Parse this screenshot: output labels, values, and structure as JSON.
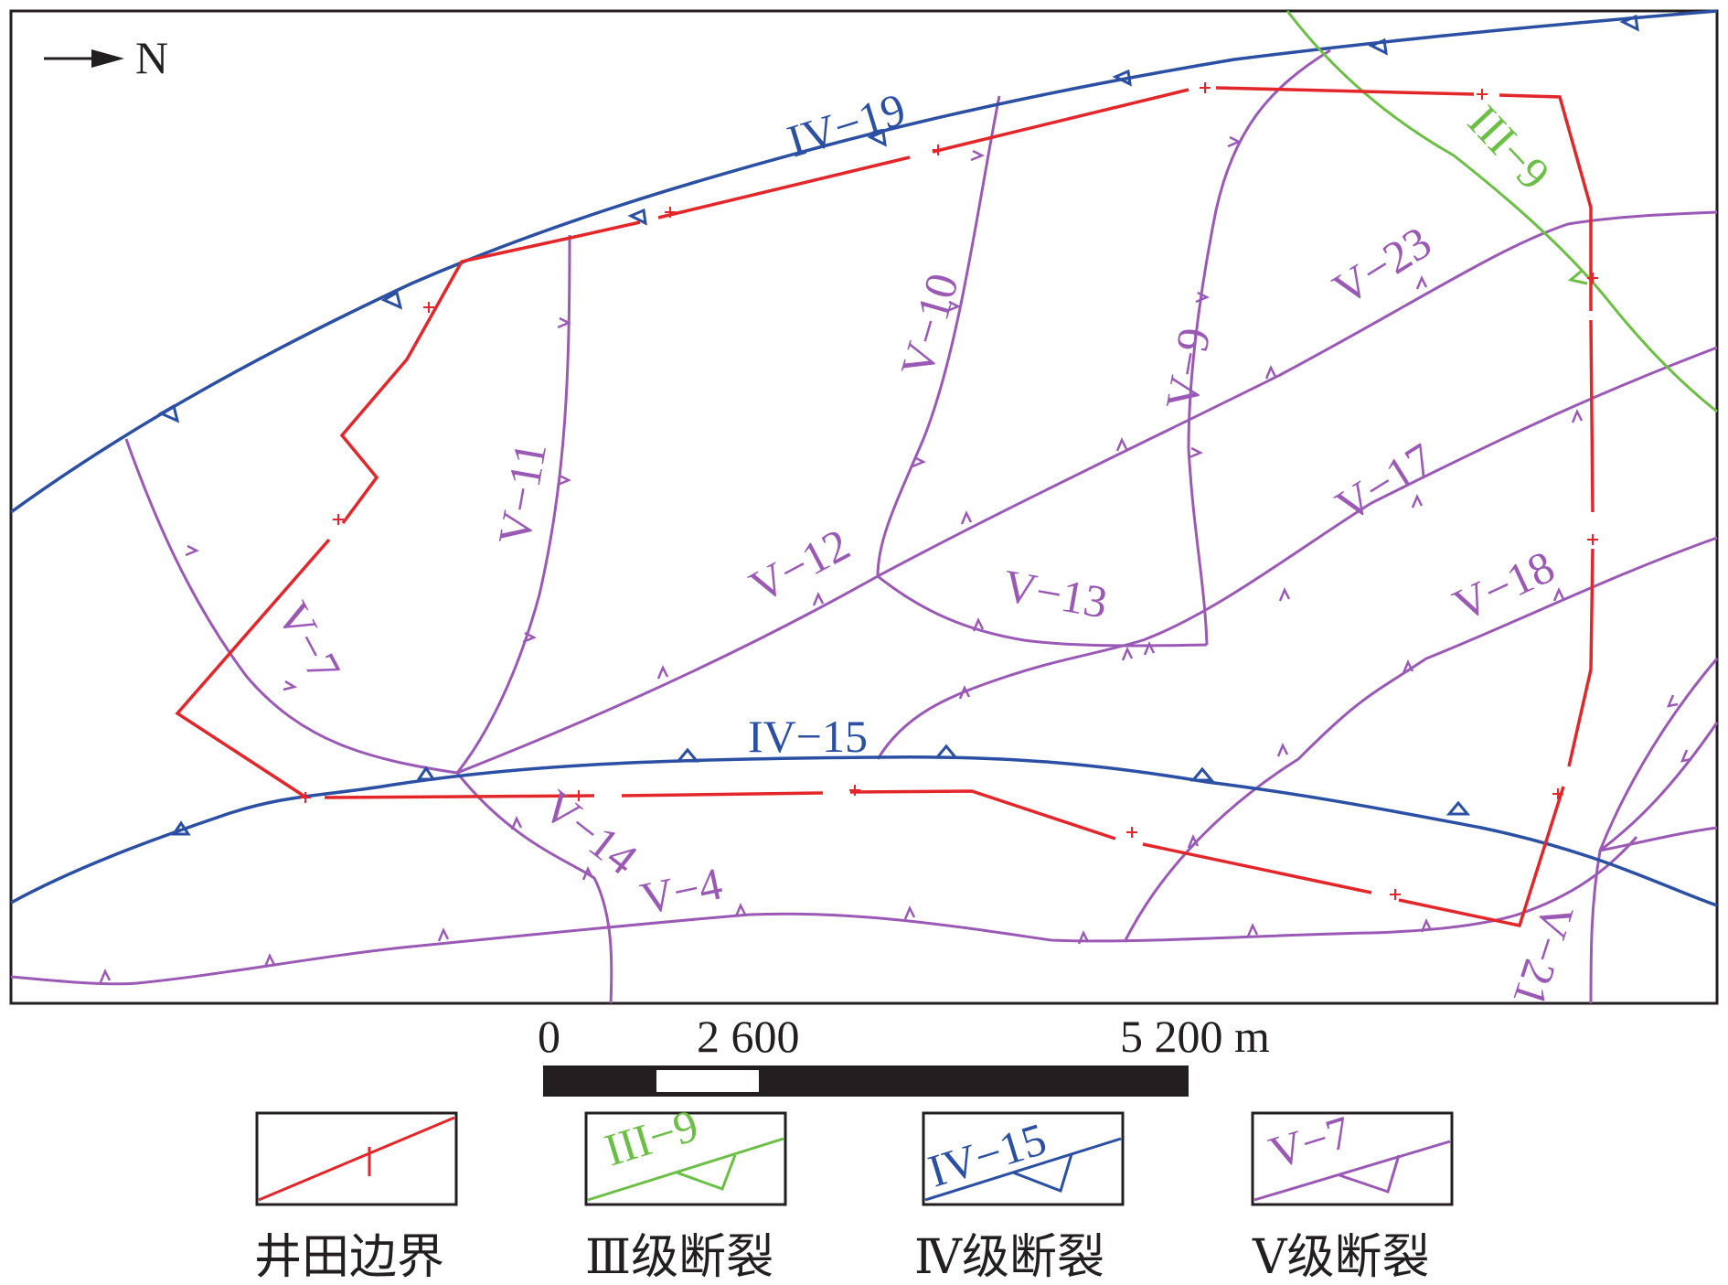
{
  "north_label": "N",
  "faults": {
    "iv19": "IV−19",
    "iv15": "IV−15",
    "iii9": "III−9",
    "v4": "V−4",
    "v7": "V−7",
    "v9": "V−9",
    "v10": "V−10",
    "v11": "V−11",
    "v12": "V−12",
    "v13": "V−13",
    "v14": "V−14",
    "v17": "V−17",
    "v18": "V−18",
    "v21": "V−21",
    "v23": "V−23"
  },
  "scale_bar": {
    "start": "0",
    "mid": "2 600",
    "end": "5 200 m"
  },
  "legend": {
    "boundary": "井田边界",
    "iii_sample": "III−9",
    "iii": "Ⅲ级断裂",
    "iv_sample": "IV−15",
    "iv": "Ⅳ级断裂",
    "v_sample": "V−7",
    "v": "Ⅴ级断裂"
  },
  "colors": {
    "boundary": "#e3262a",
    "grade_iii": "#6cbf45",
    "grade_iv": "#2a4fa3",
    "grade_v": "#9b59b6"
  }
}
